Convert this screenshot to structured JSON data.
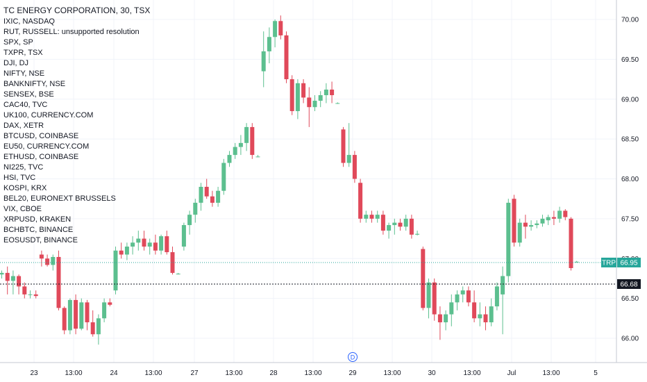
{
  "chart_data": {
    "type": "candlestick",
    "title": "TC ENERGY CORPORATION, 30, TSX",
    "symbols": [
      "IXIC, NASDAQ",
      "RUT, RUSSELL: unsupported resolution",
      "SPX, SP",
      "TXPR, TSX",
      "DJI, DJ",
      "NIFTY, NSE",
      "BANKNIFTY, NSE",
      "SENSEX, BSE",
      "CAC40, TVC",
      "UK100, CURRENCY.COM",
      "DAX, XETR",
      "BTCUSD, COINBASE",
      "EU50, CURRENCY.COM",
      "ETHUSD, COINBASE",
      "NI225, TVC",
      "HSI, TVC",
      "KOSPI, KRX",
      "BEL20, EURONEXT BRUSSELS",
      "VIX, CBOE",
      "XRPUSD, KRAKEN",
      "BCHBTC, BINANCE",
      "EOSUSDT, BINANCE"
    ],
    "y_ticks": [
      "70.00",
      "69.50",
      "69.00",
      "68.50",
      "68.00",
      "67.50",
      "67.00",
      "66.50",
      "66.00"
    ],
    "x_ticks": [
      "23",
      "13:00",
      "24",
      "13:00",
      "27",
      "13:00",
      "28",
      "13:00",
      "29",
      "13:00",
      "30",
      "13:00",
      "Jul",
      "13:00",
      "5"
    ],
    "ylim": [
      65.62,
      70.2
    ],
    "last_price": {
      "label": "TRP",
      "value": "66.95"
    },
    "crosshair_price": "66.68",
    "dividend_marker": "D",
    "colors": {
      "up": "#26a69a",
      "down": "#ef5350",
      "up_fill": "#5cbf8f",
      "down_fill": "#e0495a"
    },
    "candles": [
      [
        66.8,
        66.85,
        66.75,
        66.82
      ],
      [
        66.82,
        66.9,
        66.55,
        66.72
      ],
      [
        66.72,
        66.85,
        66.55,
        66.78
      ],
      [
        66.78,
        66.8,
        66.55,
        66.65
      ],
      [
        66.65,
        66.7,
        66.5,
        66.55
      ],
      [
        66.55,
        66.6,
        66.5,
        66.55
      ],
      [
        66.55,
        66.6,
        66.5,
        66.53
      ],
      [
        67.05,
        67.1,
        66.9,
        67.0
      ],
      [
        67.0,
        67.05,
        66.9,
        66.92
      ],
      [
        66.92,
        67.05,
        66.85,
        67.02
      ],
      [
        67.02,
        67.1,
        66.35,
        66.38
      ],
      [
        66.38,
        66.4,
        66.05,
        66.1
      ],
      [
        66.1,
        66.5,
        66.05,
        66.48
      ],
      [
        66.48,
        66.55,
        66.05,
        66.12
      ],
      [
        66.12,
        66.5,
        66.1,
        66.45
      ],
      [
        66.45,
        66.48,
        66.1,
        66.2
      ],
      [
        66.2,
        66.35,
        66.02,
        66.05
      ],
      [
        66.05,
        66.3,
        65.92,
        66.25
      ],
      [
        66.25,
        66.5,
        66.2,
        66.45
      ],
      [
        66.45,
        66.5,
        66.4,
        66.42
      ],
      [
        66.6,
        67.15,
        66.55,
        67.1
      ],
      [
        67.1,
        67.2,
        67.0,
        67.05
      ],
      [
        67.05,
        67.2,
        66.98,
        67.15
      ],
      [
        67.15,
        67.28,
        67.05,
        67.2
      ],
      [
        67.2,
        67.35,
        67.1,
        67.25
      ],
      [
        67.25,
        67.35,
        67.1,
        67.15
      ],
      [
        67.15,
        67.25,
        67.05,
        67.2
      ],
      [
        67.2,
        67.3,
        67.05,
        67.1
      ],
      [
        67.1,
        67.3,
        67.05,
        67.28
      ],
      [
        67.28,
        67.35,
        67.05,
        67.08
      ],
      [
        67.08,
        67.15,
        66.8,
        66.82
      ],
      [
        66.81,
        66.82,
        66.8,
        66.81
      ],
      [
        67.15,
        67.45,
        67.1,
        67.42
      ],
      [
        67.42,
        67.6,
        67.3,
        67.55
      ],
      [
        67.55,
        67.75,
        67.45,
        67.7
      ],
      [
        67.7,
        67.95,
        67.6,
        67.9
      ],
      [
        67.9,
        68.0,
        67.75,
        67.78
      ],
      [
        67.78,
        67.85,
        67.65,
        67.7
      ],
      [
        67.7,
        67.9,
        67.65,
        67.85
      ],
      [
        67.85,
        68.25,
        67.8,
        68.2
      ],
      [
        68.2,
        68.35,
        68.15,
        68.3
      ],
      [
        68.3,
        68.45,
        68.25,
        68.4
      ],
      [
        68.4,
        68.55,
        68.3,
        68.45
      ],
      [
        68.45,
        68.7,
        68.35,
        68.65
      ],
      [
        68.65,
        68.7,
        68.25,
        68.3
      ],
      [
        68.28,
        68.3,
        68.27,
        68.28
      ],
      [
        69.35,
        69.85,
        69.15,
        69.6
      ],
      [
        69.6,
        69.9,
        69.45,
        69.78
      ],
      [
        69.78,
        70.0,
        69.65,
        69.98
      ],
      [
        69.98,
        70.05,
        69.75,
        69.8
      ],
      [
        69.8,
        69.85,
        69.2,
        69.25
      ],
      [
        69.25,
        69.3,
        68.8,
        68.85
      ],
      [
        68.85,
        69.25,
        68.75,
        69.2
      ],
      [
        69.2,
        69.25,
        68.95,
        69.02
      ],
      [
        69.02,
        69.15,
        68.65,
        68.9
      ],
      [
        68.9,
        69.05,
        68.85,
        68.98
      ],
      [
        68.98,
        69.1,
        68.9,
        69.05
      ],
      [
        69.05,
        69.2,
        68.95,
        69.12
      ],
      [
        69.12,
        69.22,
        68.95,
        69.05
      ],
      [
        68.95,
        68.96,
        68.94,
        68.95
      ],
      [
        68.62,
        68.65,
        68.15,
        68.2
      ],
      [
        68.2,
        68.7,
        68.15,
        68.3
      ],
      [
        68.3,
        68.35,
        67.95,
        68.0
      ],
      [
        67.95,
        68.0,
        67.45,
        67.5
      ],
      [
        67.5,
        67.6,
        67.45,
        67.55
      ],
      [
        67.55,
        67.6,
        67.45,
        67.5
      ],
      [
        67.5,
        67.6,
        67.45,
        67.55
      ],
      [
        67.55,
        67.6,
        67.3,
        67.35
      ],
      [
        67.35,
        67.45,
        67.25,
        67.42
      ],
      [
        67.42,
        67.5,
        67.3,
        67.45
      ],
      [
        67.45,
        67.5,
        67.35,
        67.4
      ],
      [
        67.4,
        67.55,
        67.35,
        67.5
      ],
      [
        67.5,
        67.55,
        67.25,
        67.3
      ],
      [
        67.3,
        67.35,
        67.29,
        67.31
      ],
      [
        67.12,
        67.15,
        66.35,
        66.38
      ],
      [
        66.38,
        66.75,
        66.25,
        66.7
      ],
      [
        66.7,
        66.75,
        66.22,
        66.3
      ],
      [
        66.3,
        66.4,
        65.98,
        66.2
      ],
      [
        66.2,
        66.35,
        66.1,
        66.3
      ],
      [
        66.3,
        66.55,
        66.15,
        66.45
      ],
      [
        66.45,
        66.6,
        66.35,
        66.55
      ],
      [
        66.55,
        66.65,
        66.45,
        66.6
      ],
      [
        66.6,
        66.65,
        66.4,
        66.45
      ],
      [
        66.45,
        66.6,
        66.2,
        66.25
      ],
      [
        66.25,
        66.45,
        66.15,
        66.3
      ],
      [
        66.3,
        66.4,
        66.1,
        66.2
      ],
      [
        66.2,
        66.5,
        66.15,
        66.4
      ],
      [
        66.4,
        66.7,
        66.35,
        66.65
      ],
      [
        66.55,
        66.9,
        66.05,
        66.78
      ],
      [
        66.78,
        67.75,
        66.7,
        67.7
      ],
      [
        67.75,
        67.8,
        67.15,
        67.2
      ],
      [
        67.2,
        67.5,
        67.15,
        67.45
      ],
      [
        67.45,
        67.55,
        67.25,
        67.4
      ],
      [
        67.4,
        67.48,
        67.35,
        67.42
      ],
      [
        67.42,
        67.48,
        67.38,
        67.44
      ],
      [
        67.44,
        67.55,
        67.4,
        67.5
      ],
      [
        67.48,
        67.55,
        67.42,
        67.52
      ],
      [
        67.52,
        67.6,
        67.42,
        67.5
      ],
      [
        67.5,
        67.65,
        67.45,
        67.6
      ],
      [
        67.6,
        67.62,
        67.48,
        67.52
      ],
      [
        67.5,
        67.52,
        66.85,
        66.88
      ],
      [
        66.96,
        66.97,
        66.95,
        66.96
      ]
    ]
  }
}
